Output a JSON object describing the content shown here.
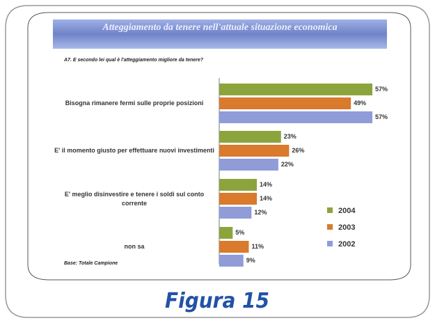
{
  "chart_data": {
    "type": "hbar",
    "title": "Atteggiamento da tenere nell'attuale situazione economica",
    "subtitle": "A7. E secondo lei qual è l'atteggiamento migliore da tenere?",
    "categories": [
      "Bisogna rimanere fermi sulle proprie posizioni",
      "E' il momento giusto per effettuare nuovi investimenti",
      "E' meglio disinvestire e tenere i soldi sul conto corrente",
      "non sa"
    ],
    "series": [
      {
        "name": "2004",
        "color": "#8ca43c",
        "values": [
          57,
          23,
          14,
          5
        ],
        "value_labels": [
          "57%",
          "23%",
          "14%",
          "5%"
        ]
      },
      {
        "name": "2003",
        "color": "#d97a2c",
        "values": [
          49,
          26,
          14,
          11
        ],
        "value_labels": [
          "49%",
          "26%",
          "14%",
          "11%"
        ]
      },
      {
        "name": "2002",
        "color": "#8f9cd8",
        "values": [
          57,
          22,
          12,
          9
        ],
        "value_labels": [
          "57%",
          "22%",
          "12%",
          "9%"
        ]
      }
    ],
    "note": "Base: Totale Campione",
    "caption": "Figura 15"
  }
}
